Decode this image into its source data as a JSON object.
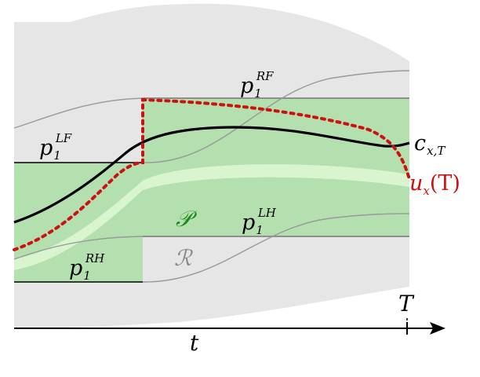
{
  "labels": {
    "p_rf": {
      "base": "p",
      "sub": "1",
      "sup": "RF"
    },
    "p_lf": {
      "base": "p",
      "sub": "1",
      "sup": "LF"
    },
    "p_lh": {
      "base": "p",
      "sub": "1",
      "sup": "LH"
    },
    "p_rh": {
      "base": "p",
      "sub": "1",
      "sup": "RH"
    },
    "c": {
      "base": "c",
      "sub": "x,T"
    },
    "u": {
      "text": "u",
      "sub": "x",
      "arg": "(T)"
    },
    "P": "𝒫",
    "R": "ℛ",
    "T": "T",
    "t": "t"
  },
  "colors": {
    "region_gray": "#e6e6e6",
    "region_green": "#b4e0b0",
    "band_light_green": "#d8f5d0",
    "trajectory": "#000000",
    "dotted": "#cc1111",
    "guide_gray": "#999999",
    "P_label": "#1a8a1a",
    "R_label": "#888888"
  }
}
